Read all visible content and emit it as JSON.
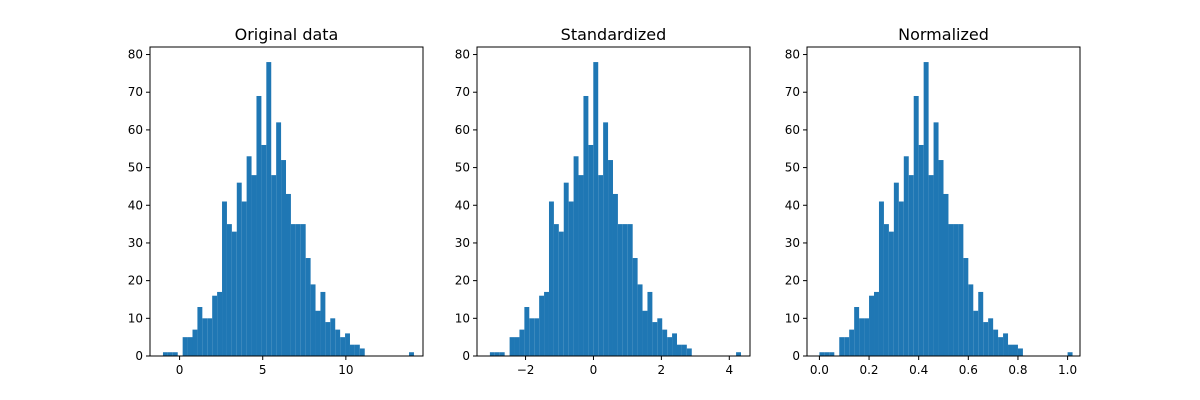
{
  "chart_data": [
    {
      "type": "bar",
      "title": "Original data",
      "xlim": [
        -1.78,
        14.64
      ],
      "ylim": [
        0,
        82
      ],
      "xticks": [
        0,
        5,
        10
      ],
      "xtick_labels": [
        "0",
        "5",
        "10"
      ],
      "yticks": [
        0,
        10,
        20,
        30,
        40,
        50,
        60,
        70,
        80
      ],
      "ytick_labels": [
        "0",
        "10",
        "20",
        "30",
        "40",
        "50",
        "60",
        "70",
        "80"
      ],
      "bin_start": -1.0,
      "bin_width": 0.296,
      "values": [
        1,
        1,
        1,
        0,
        5,
        5,
        7,
        13,
        10,
        10,
        16,
        17,
        41,
        35,
        33,
        46,
        41,
        53,
        48,
        69,
        56,
        78,
        48,
        62,
        52,
        43,
        35,
        35,
        35,
        26,
        19,
        12,
        17,
        9,
        10,
        7,
        5,
        6,
        3,
        3,
        2,
        0,
        0,
        0,
        0,
        0,
        0,
        0,
        0,
        0,
        1
      ],
      "color": "#1f77b4"
    },
    {
      "type": "bar",
      "title": "Standardized",
      "xlim": [
        -3.43,
        4.61
      ],
      "ylim": [
        0,
        82
      ],
      "xticks": [
        -2,
        0,
        2,
        4
      ],
      "xtick_labels": [
        "−2",
        "0",
        "2",
        "4"
      ],
      "yticks": [
        0,
        10,
        20,
        30,
        40,
        50,
        60,
        70,
        80
      ],
      "ytick_labels": [
        "0",
        "10",
        "20",
        "30",
        "40",
        "50",
        "60",
        "70",
        "80"
      ],
      "bin_start": -3.05,
      "bin_width": 0.145,
      "values": [
        1,
        1,
        1,
        0,
        5,
        5,
        7,
        13,
        10,
        10,
        16,
        17,
        41,
        35,
        33,
        46,
        41,
        53,
        48,
        69,
        56,
        78,
        48,
        62,
        52,
        43,
        35,
        35,
        35,
        26,
        19,
        12,
        17,
        9,
        10,
        7,
        5,
        6,
        3,
        3,
        2,
        0,
        0,
        0,
        0,
        0,
        0,
        0,
        0,
        0,
        1
      ],
      "color": "#1f77b4"
    },
    {
      "type": "bar",
      "title": "Normalized",
      "xlim": [
        -0.05,
        1.05
      ],
      "ylim": [
        0,
        82
      ],
      "xticks": [
        0.0,
        0.2,
        0.4,
        0.6,
        0.8,
        1.0
      ],
      "xtick_labels": [
        "0.0",
        "0.2",
        "0.4",
        "0.6",
        "0.8",
        "1.0"
      ],
      "yticks": [
        0,
        10,
        20,
        30,
        40,
        50,
        60,
        70,
        80
      ],
      "ytick_labels": [
        "0",
        "10",
        "20",
        "30",
        "40",
        "50",
        "60",
        "70",
        "80"
      ],
      "bin_start": 0.0,
      "bin_width": 0.02,
      "values": [
        1,
        1,
        1,
        0,
        5,
        5,
        7,
        13,
        10,
        10,
        16,
        17,
        41,
        35,
        33,
        46,
        41,
        53,
        48,
        69,
        56,
        78,
        48,
        62,
        52,
        43,
        35,
        35,
        35,
        26,
        19,
        12,
        17,
        9,
        10,
        7,
        5,
        6,
        3,
        3,
        2,
        0,
        0,
        0,
        0,
        0,
        0,
        0,
        0,
        0,
        1
      ],
      "color": "#1f77b4"
    }
  ]
}
